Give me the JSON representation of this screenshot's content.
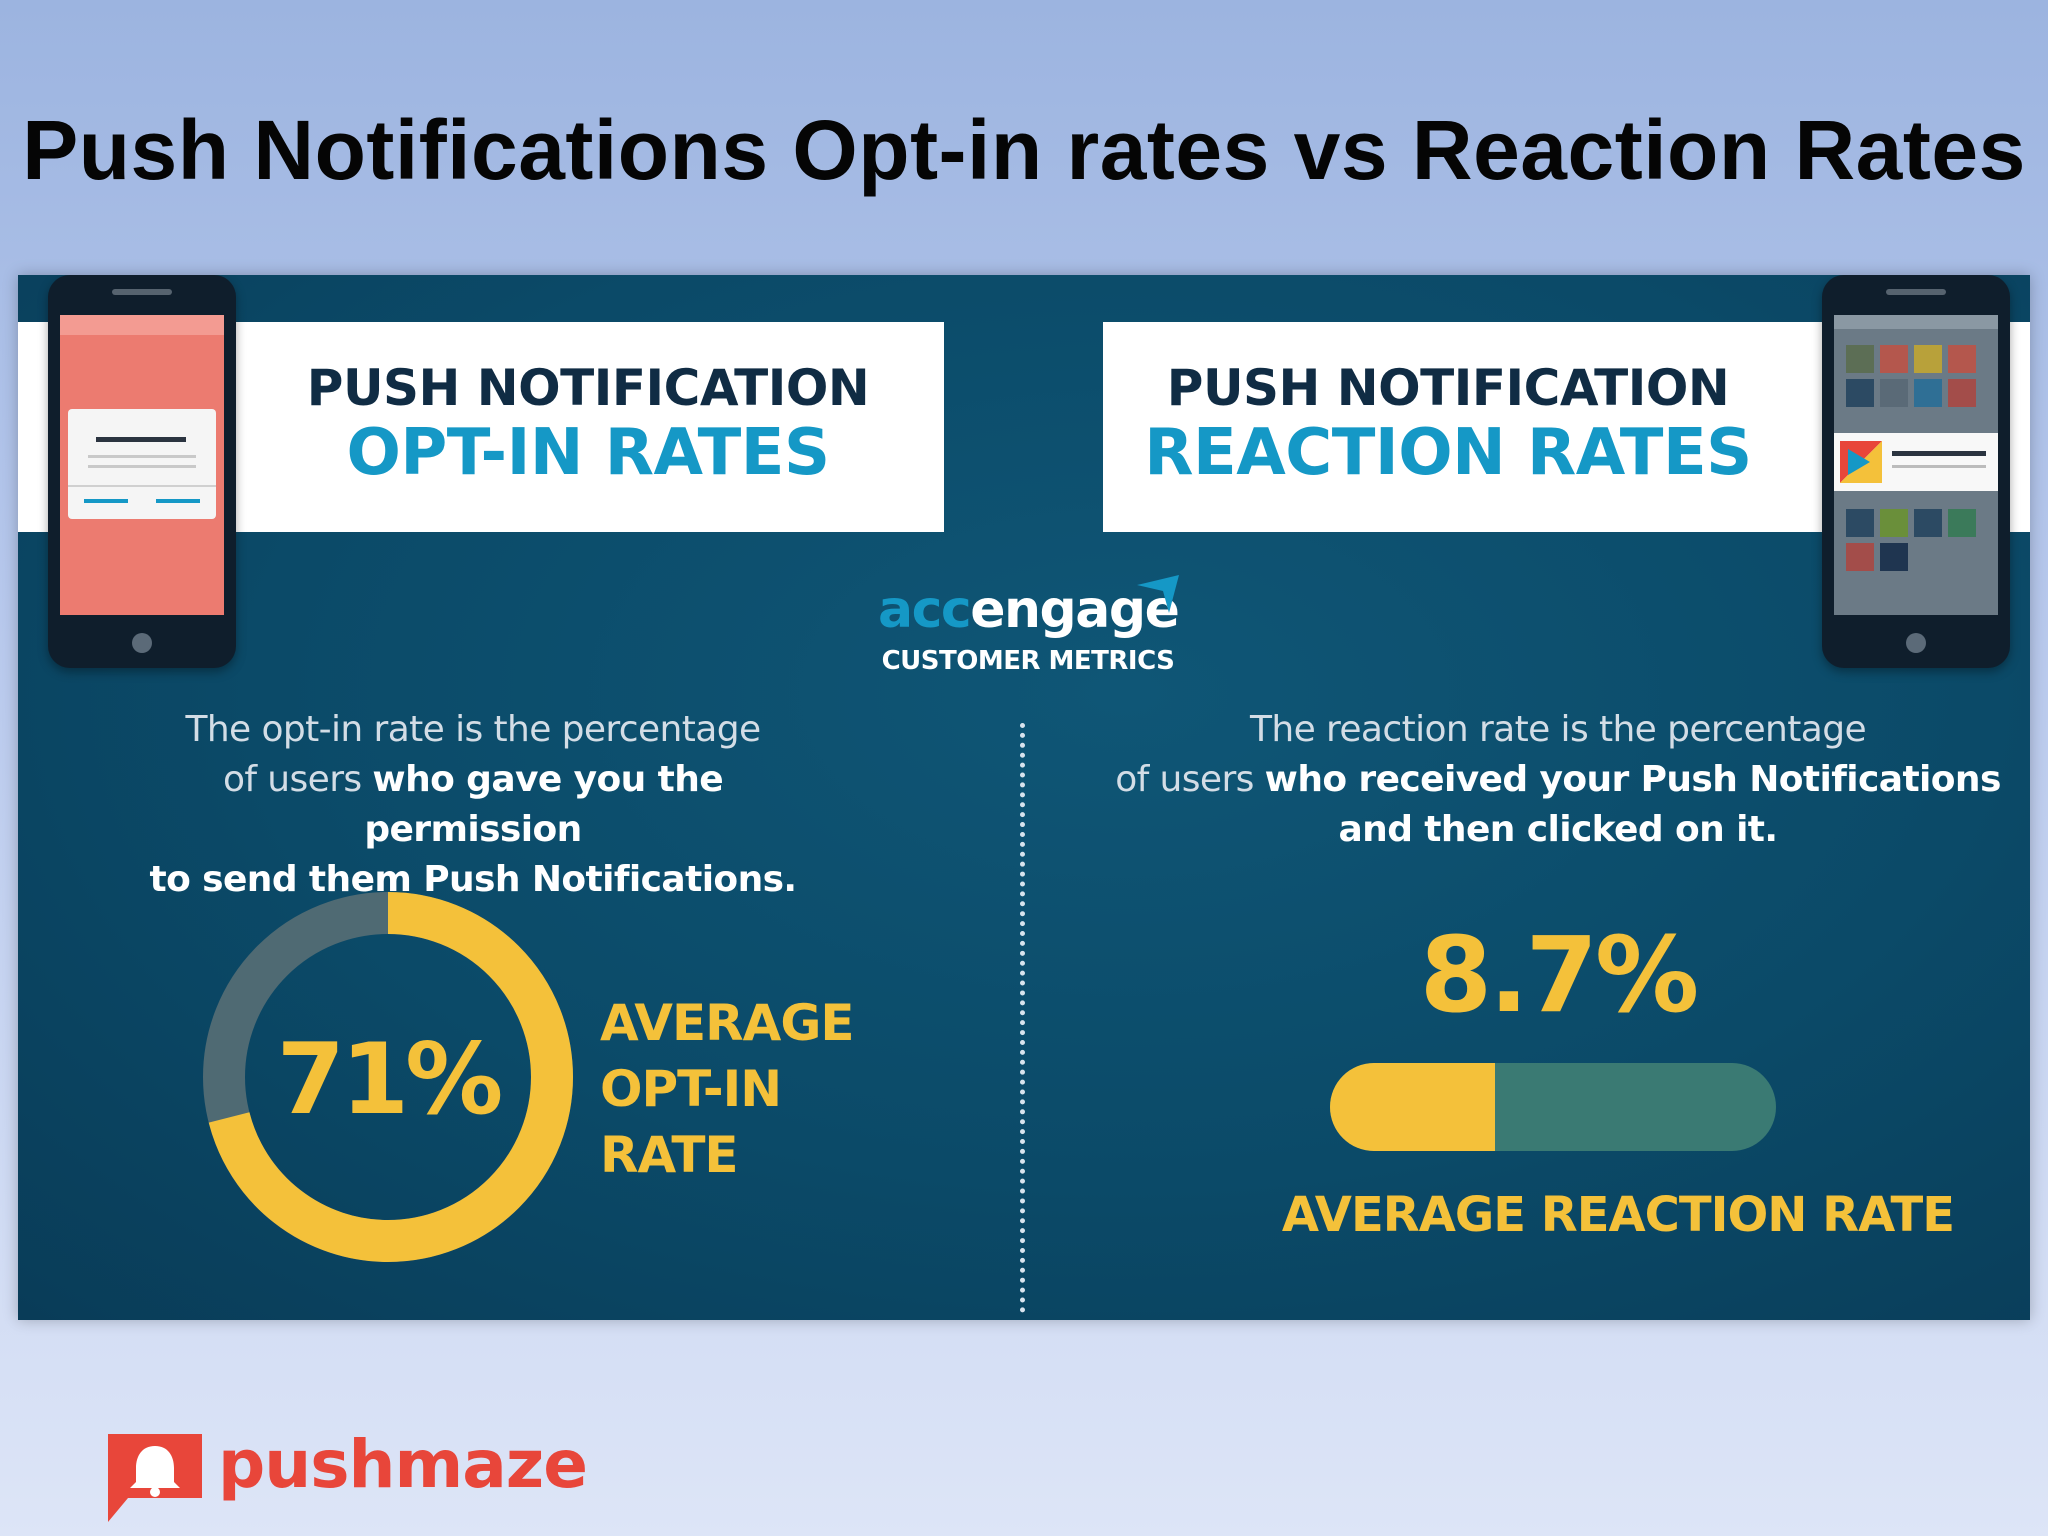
{
  "slide_title": "Push Notifications Opt-in rates vs Reaction Rates",
  "colors": {
    "navy": "#0b4a68",
    "teal": "#1598c6",
    "yellow": "#f4c13a",
    "donut_gray": "#4f6a73",
    "bar_green": "#3a7a73",
    "phone_red": "#ec7b70",
    "brand_red": "#e8463a"
  },
  "left_panel": {
    "banner_line1": "PUSH NOTIFICATION",
    "banner_line2": "OPT-IN RATES",
    "desc_line1": "The opt-in rate is the percentage",
    "desc_line2_plain": "of users ",
    "desc_line2_bold": "who gave you the permission",
    "desc_line3_bold": "to send them Push Notifications.",
    "metric_value": "71%",
    "metric_fraction": 0.71,
    "metric_label_line1": "AVERAGE",
    "metric_label_line2": "OPT-IN",
    "metric_label_line3": "RATE"
  },
  "right_panel": {
    "banner_line1": "PUSH NOTIFICATION",
    "banner_line2": "REACTION RATES",
    "desc_line1": "The reaction rate is the percentage",
    "desc_line2_plain": "of users ",
    "desc_line2_bold": "who received your Push Notifications",
    "desc_line3_bold": "and then clicked on it.",
    "metric_value": "8.7%",
    "bar_fraction": 0.37,
    "metric_label": "AVERAGE REACTION RATE"
  },
  "center_logo": {
    "brand_part1": "acc",
    "brand_part2": "engage",
    "subtitle": "CUSTOMER METRICS"
  },
  "footer_logo": {
    "brand": "pushmaze",
    "icon": "bell-icon"
  }
}
